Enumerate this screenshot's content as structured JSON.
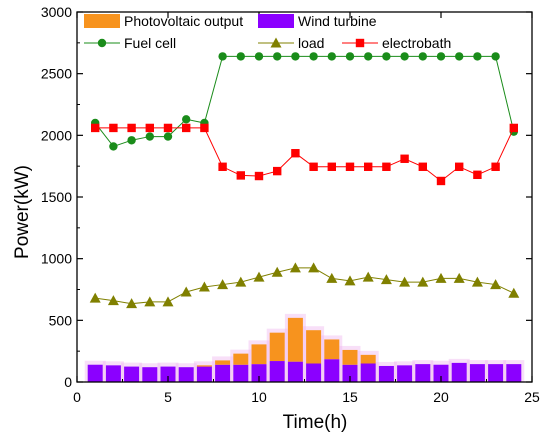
{
  "colors": {
    "pv": "#F7931E",
    "wind": "#8B00FF",
    "fuel": "#1A8C1A",
    "load": "#808000",
    "electrobath": "#FF0000",
    "glow": "#F0B8F0"
  },
  "chart_data": {
    "type": "bar+line",
    "xlabel": "Time(h)",
    "ylabel": "Power(kW)",
    "xlim": [
      0,
      25
    ],
    "ylim": [
      0,
      3000
    ],
    "xticks": [
      0,
      5,
      10,
      15,
      20,
      25
    ],
    "yticks": [
      0,
      500,
      1000,
      1500,
      2000,
      2500,
      3000
    ],
    "legend_placement": "top-left, inside plot",
    "x": [
      1,
      2,
      3,
      4,
      5,
      6,
      7,
      8,
      9,
      10,
      11,
      12,
      13,
      14,
      15,
      16,
      17,
      18,
      19,
      20,
      21,
      22,
      23,
      24
    ],
    "stacked_bars": [
      {
        "name": "Wind turbine",
        "color_key": "wind",
        "values": [
          140,
          135,
          125,
          120,
          125,
          120,
          125,
          140,
          140,
          145,
          170,
          165,
          150,
          185,
          140,
          150,
          130,
          135,
          145,
          140,
          155,
          145,
          145,
          145
        ]
      },
      {
        "name": "Photovoltaic output",
        "color_key": "pv",
        "values": [
          0,
          0,
          0,
          0,
          0,
          0,
          10,
          35,
          90,
          160,
          230,
          355,
          270,
          160,
          120,
          70,
          0,
          0,
          0,
          0,
          0,
          0,
          0,
          0
        ]
      }
    ],
    "lines": [
      {
        "name": "Fuel cell",
        "color_key": "fuel",
        "marker": "circle",
        "values": [
          2100,
          1910,
          1960,
          1990,
          1990,
          2130,
          2100,
          2640,
          2640,
          2640,
          2640,
          2640,
          2640,
          2640,
          2640,
          2640,
          2640,
          2640,
          2640,
          2640,
          2640,
          2640,
          2640,
          2030
        ]
      },
      {
        "name": "load",
        "color_key": "load",
        "marker": "triangle",
        "values": [
          680,
          660,
          635,
          650,
          650,
          730,
          770,
          790,
          810,
          850,
          890,
          925,
          925,
          840,
          820,
          850,
          830,
          810,
          810,
          840,
          840,
          810,
          790,
          720
        ]
      },
      {
        "name": "electrobath",
        "color_key": "electrobath",
        "marker": "square",
        "values": [
          2060,
          2060,
          2060,
          2060,
          2060,
          2060,
          2060,
          1745,
          1675,
          1670,
          1710,
          1855,
          1745,
          1745,
          1745,
          1745,
          1745,
          1810,
          1745,
          1630,
          1745,
          1680,
          1745,
          2060
        ]
      }
    ]
  }
}
